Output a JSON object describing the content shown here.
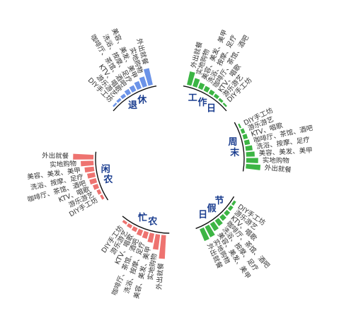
{
  "chart_data": {
    "type": "radial-bar",
    "categories": [
      "外出就餐",
      "实地购物",
      "美容、美发、美甲",
      "洗浴、按摩、足疗",
      "咖啡厅、茶馆、酒吧",
      "KTV、唱歌",
      "游乐游艺",
      "DIY手工坊"
    ],
    "series": [
      {
        "name": "退休",
        "color": "#6b93e8",
        "values": [
          20,
          12,
          9,
          7,
          6,
          4,
          3,
          2
        ]
      },
      {
        "name": "工作日",
        "color": "#3cb544",
        "values": [
          16,
          10,
          7,
          6,
          5,
          4,
          3,
          2
        ]
      },
      {
        "name": "周末",
        "color": "#3cb544",
        "values": [
          17,
          14,
          10,
          8,
          6,
          5,
          4,
          2
        ]
      },
      {
        "name": "节假日",
        "color": "#3cb544",
        "values": [
          15,
          14,
          10,
          8,
          6,
          5,
          4,
          3
        ]
      },
      {
        "name": "农忙",
        "color": "#ee7370",
        "values": [
          28,
          18,
          11,
          8,
          7,
          5,
          4,
          3
        ]
      },
      {
        "name": "农闲",
        "color": "#ee7370",
        "values": [
          24,
          15,
          11,
          9,
          8,
          6,
          4,
          3
        ]
      }
    ]
  }
}
